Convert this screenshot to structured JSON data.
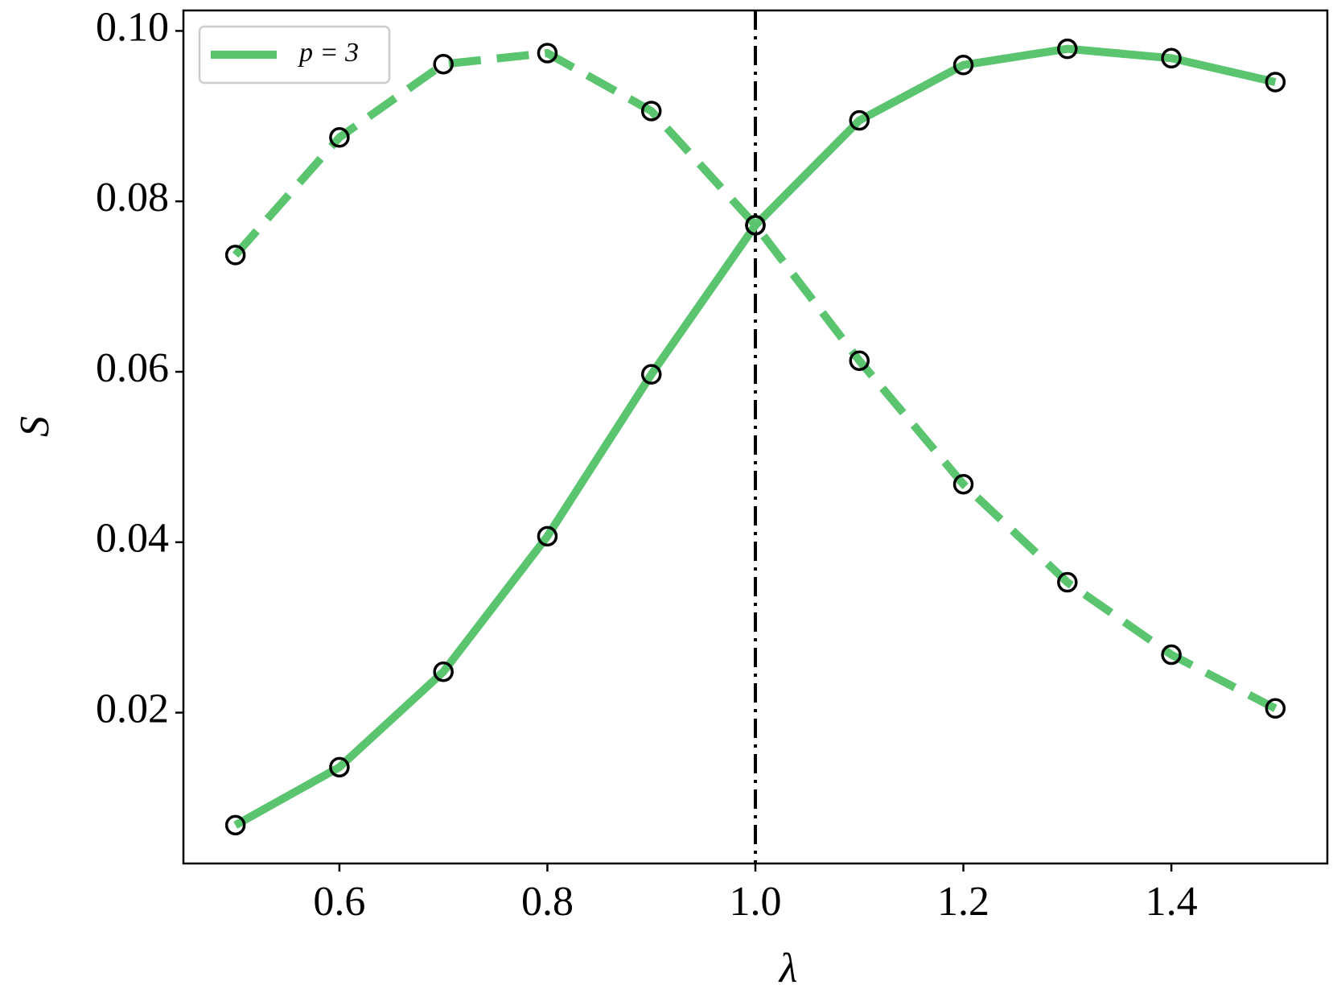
{
  "chart_data": {
    "type": "line",
    "x_label": "λ",
    "y_label": "S",
    "x": [
      0.5,
      0.6,
      0.7,
      0.8,
      0.9,
      1.0,
      1.1,
      1.2,
      1.3,
      1.4,
      1.5
    ],
    "series": [
      {
        "name": "p = 3",
        "color": "#5ac46f",
        "dashed": false,
        "values": [
          0.0068,
          0.0136,
          0.0248,
          0.0407,
          0.0597,
          0.0772,
          0.0895,
          0.096,
          0.0979,
          0.0968,
          0.094
        ]
      },
      {
        "color": "#5ac46f",
        "dashed": true,
        "values": [
          0.0737,
          0.0875,
          0.0961,
          0.0974,
          0.0906,
          0.0772,
          0.0613,
          0.0468,
          0.0353,
          0.0268,
          0.0205
        ]
      }
    ],
    "markers": "open-circle",
    "vline": 1.0,
    "xlim": [
      0.45,
      1.55
    ],
    "ylim": [
      0.0023,
      0.1024
    ],
    "xticks": [
      0.6,
      0.8,
      {
        "value": 1.0,
        "label": "1.0"
      },
      1.2,
      1.4
    ],
    "yticks": [
      0.02,
      0.04,
      0.06,
      0.08,
      {
        "value": 0.1,
        "label": "0.10"
      }
    ],
    "legend": "upper left",
    "grid": false
  }
}
